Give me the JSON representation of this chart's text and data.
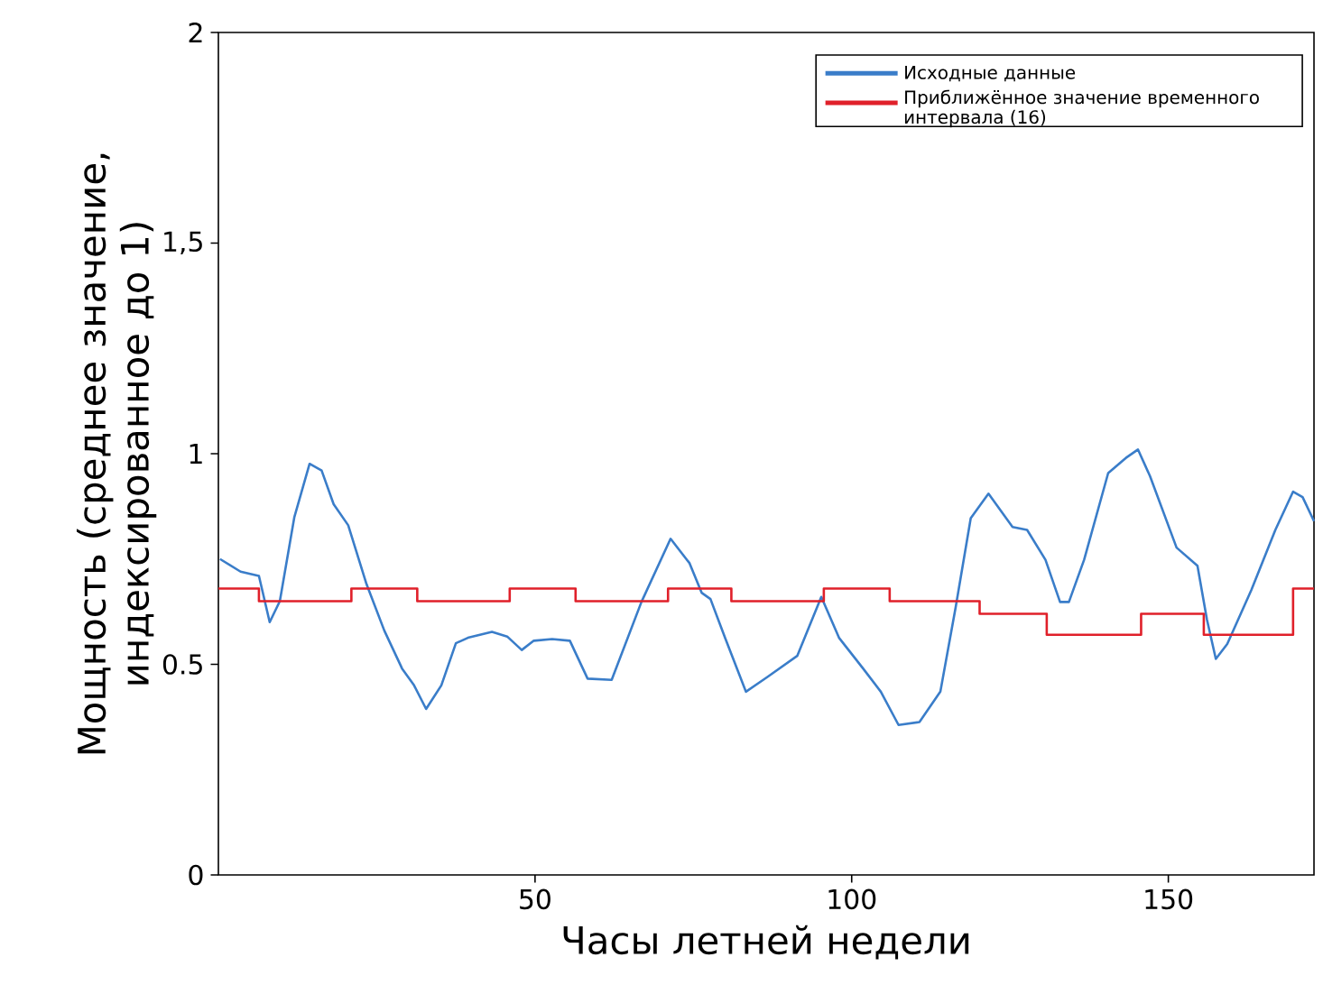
{
  "chart_data": {
    "type": "line",
    "xlabel": "Часы летней недели",
    "ylabel": "Мощность (среднее значение, индексированное до 1)",
    "xlim": [
      0,
      173
    ],
    "ylim": [
      0,
      2
    ],
    "xticks": [
      50,
      100,
      150
    ],
    "yticks": [
      0,
      {
        "value": 0.5,
        "label": "0.5"
      },
      {
        "value": 1,
        "label": "1"
      },
      {
        "value": 1.5,
        "label": "1,5"
      },
      2
    ],
    "legend": "top right",
    "marker": "none",
    "line_style": "solid",
    "grid": false,
    "series": [
      {
        "name": "Исходные данные",
        "color": "#3a7dc9",
        "x": [
          0.25,
          3.5,
          6.4,
          8.1,
          9.7,
          12.0,
          14.4,
          16.3,
          18.2,
          20.5,
          23.4,
          26.2,
          29.0,
          30.9,
          32.8,
          35.2,
          37.5,
          39.4,
          43.2,
          45.6,
          47.9,
          49.8,
          52.7,
          55.5,
          58.3,
          62.1,
          66.8,
          71.4,
          74.4,
          76.3,
          77.7,
          80.0,
          83.3,
          86.7,
          91.4,
          95.2,
          98.0,
          101.8,
          104.6,
          107.4,
          110.7,
          114.0,
          116.4,
          118.8,
          121.6,
          125.4,
          127.7,
          130.6,
          132.9,
          134.3,
          136.7,
          140.5,
          143.3,
          145.2,
          147.1,
          151.3,
          154.6,
          156.1,
          157.5,
          159.3,
          163.1,
          166.9,
          169.7,
          171.2,
          173.0
        ],
        "values": [
          0.75,
          0.72,
          0.71,
          0.6,
          0.65,
          0.85,
          0.976,
          0.96,
          0.88,
          0.83,
          0.69,
          0.58,
          0.49,
          0.45,
          0.394,
          0.45,
          0.55,
          0.563,
          0.577,
          0.566,
          0.534,
          0.556,
          0.56,
          0.556,
          0.466,
          0.463,
          0.648,
          0.798,
          0.74,
          0.67,
          0.655,
          0.563,
          0.435,
          0.47,
          0.52,
          0.66,
          0.563,
          0.49,
          0.435,
          0.356,
          0.363,
          0.435,
          0.634,
          0.847,
          0.905,
          0.826,
          0.819,
          0.748,
          0.648,
          0.648,
          0.748,
          0.954,
          0.99,
          1.01,
          0.947,
          0.777,
          0.734,
          0.606,
          0.513,
          0.548,
          0.676,
          0.819,
          0.91,
          0.897,
          0.84
        ]
      },
      {
        "name": "Приближённое значение временного интервала (16)",
        "color": "#e0202a",
        "type": "step",
        "x": [
          0,
          6.4,
          21,
          31.4,
          46,
          56.4,
          71,
          81,
          95.6,
          106,
          120.2,
          130.8,
          145.7,
          155.6,
          169.7,
          173
        ],
        "values": [
          0.68,
          0.65,
          0.68,
          0.65,
          0.68,
          0.65,
          0.68,
          0.65,
          0.68,
          0.65,
          0.62,
          0.57,
          0.62,
          0.57,
          0.68,
          0.68
        ]
      }
    ]
  }
}
